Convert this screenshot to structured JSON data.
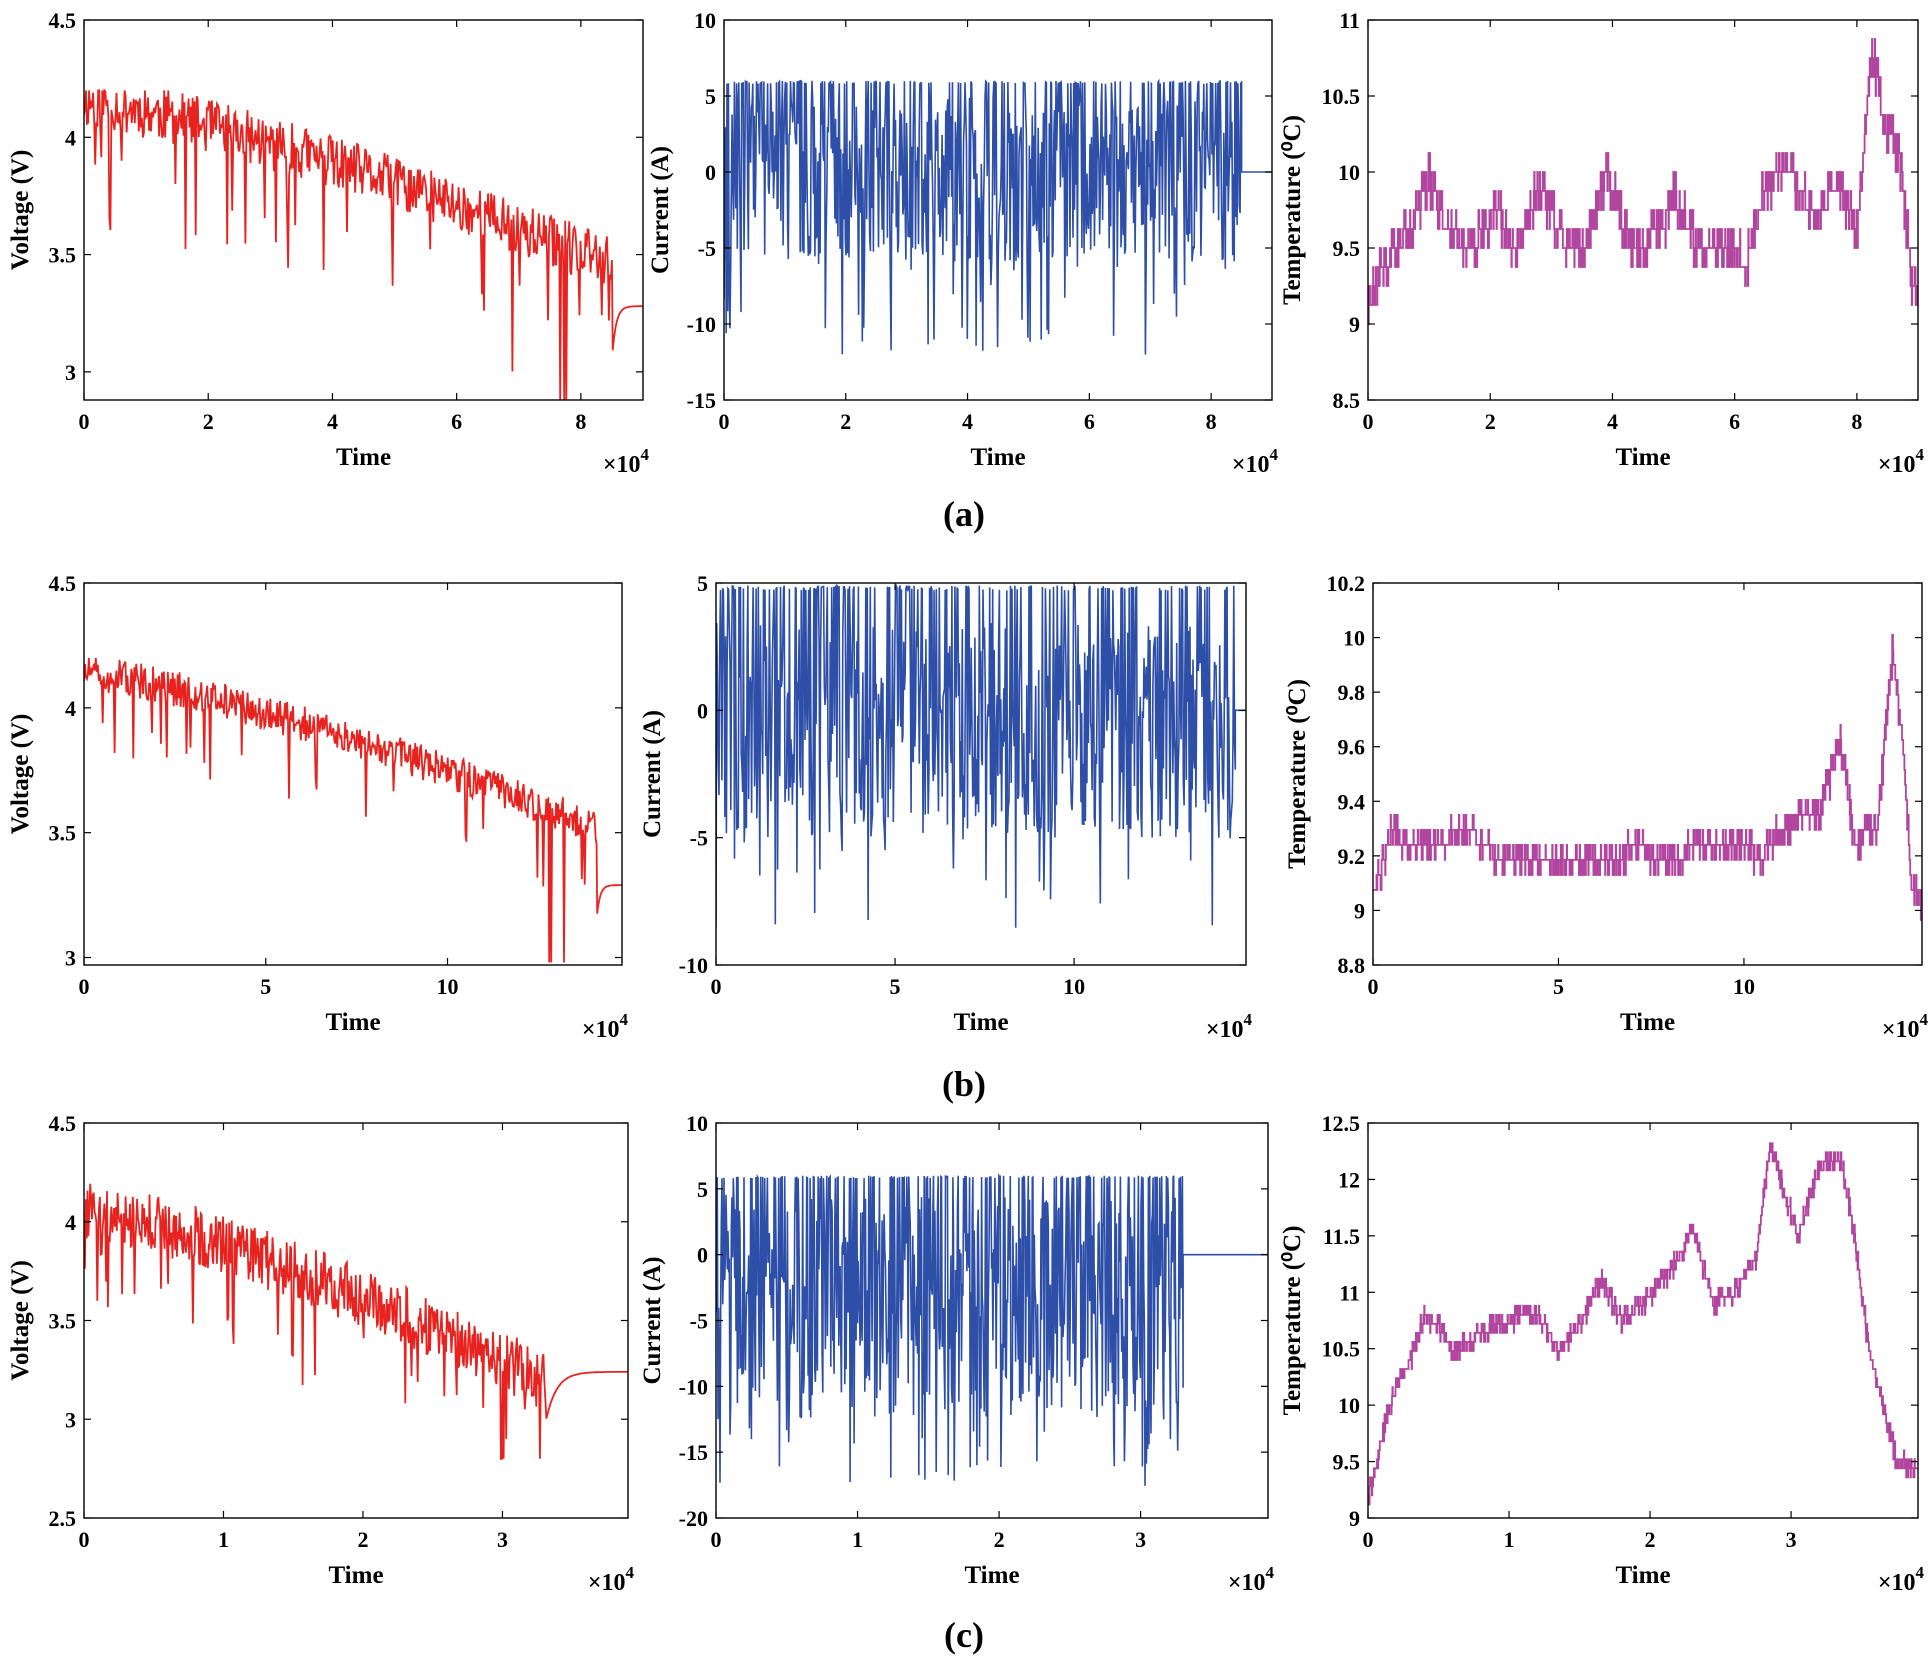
{
  "figure": {
    "captions": [
      "(a)",
      "(b)",
      "(c)"
    ],
    "multiplier_label": "×10",
    "multiplier_exponent": "4"
  },
  "colors": {
    "voltage": "#e8231f",
    "current": "#2e4fa8",
    "temperature": "#b1459f"
  },
  "chart_data": [
    {
      "id": "a-voltage",
      "row": 0,
      "col": 0,
      "type": "line",
      "title": "",
      "xlabel": "Time",
      "ylabel": "Voltage (V)",
      "xlim": [
        0,
        9
      ],
      "ylim": [
        2.88,
        4.5
      ],
      "xticks": [
        0,
        2,
        4,
        6,
        8
      ],
      "yticks": [
        3,
        3.5,
        4,
        4.5
      ],
      "x_multiplier": "×10^4",
      "series": [
        {
          "name": "Voltage",
          "kind": "voltage",
          "start": 4.12,
          "end": 3.42,
          "noise_amp": 0.42,
          "ceiling": 4.2,
          "dip_prob": 0.05,
          "dip_depth": 0.35,
          "active_end": 8.5,
          "tail_from": 3.05,
          "tail_to": 3.28,
          "seed": 11,
          "min_spike": 2.88
        }
      ]
    },
    {
      "id": "a-current",
      "row": 0,
      "col": 1,
      "type": "line",
      "title": "",
      "xlabel": "Time",
      "ylabel": "Current (A)",
      "xlim": [
        0,
        9
      ],
      "ylim": [
        -15,
        10
      ],
      "xticks": [
        0,
        2,
        4,
        6,
        8
      ],
      "yticks": [
        -15,
        -10,
        -5,
        0,
        5,
        10
      ],
      "x_multiplier": "×10^4",
      "series": [
        {
          "name": "Current",
          "kind": "current",
          "max": 6,
          "min": -13.2,
          "typical_low": -6,
          "center": -0.5,
          "active_end": 8.5,
          "tail": 0,
          "seed": 23
        }
      ]
    },
    {
      "id": "a-temperature",
      "row": 0,
      "col": 2,
      "type": "line",
      "title": "",
      "xlabel": "Time",
      "ylabel": "Temperature (⁰C)",
      "xlim": [
        0,
        9
      ],
      "ylim": [
        8.5,
        11
      ],
      "xticks": [
        0,
        2,
        4,
        6,
        8
      ],
      "yticks": [
        8.5,
        9,
        9.5,
        10,
        10.5,
        11
      ],
      "x_multiplier": "×10^4",
      "series": [
        {
          "name": "Temperature",
          "kind": "temperature",
          "step": 0.125,
          "seed": 37,
          "profile": [
            [
              0,
              9.05
            ],
            [
              0.15,
              9.3
            ],
            [
              0.4,
              9.45
            ],
            [
              0.7,
              9.65
            ],
            [
              1.0,
              9.95
            ],
            [
              1.3,
              9.6
            ],
            [
              1.7,
              9.5
            ],
            [
              2.1,
              9.75
            ],
            [
              2.4,
              9.5
            ],
            [
              2.8,
              9.9
            ],
            [
              3.2,
              9.55
            ],
            [
              3.6,
              9.55
            ],
            [
              3.9,
              10.0
            ],
            [
              4.3,
              9.5
            ],
            [
              4.8,
              9.6
            ],
            [
              5.0,
              9.85
            ],
            [
              5.4,
              9.5
            ],
            [
              5.8,
              9.55
            ],
            [
              6.2,
              9.4
            ],
            [
              6.5,
              9.9
            ],
            [
              6.9,
              10.0
            ],
            [
              7.3,
              9.7
            ],
            [
              7.7,
              9.9
            ],
            [
              8.0,
              9.6
            ],
            [
              8.25,
              10.8
            ],
            [
              8.45,
              10.3
            ],
            [
              8.7,
              10.1
            ],
            [
              8.9,
              9.3
            ],
            [
              9.0,
              9.1
            ]
          ]
        }
      ]
    },
    {
      "id": "b-voltage",
      "row": 1,
      "col": 0,
      "type": "line",
      "title": "",
      "xlabel": "Time",
      "ylabel": "Voltage (V)",
      "xlim": [
        0,
        14.8
      ],
      "ylim": [
        2.97,
        4.5
      ],
      "xticks": [
        0,
        5,
        10
      ],
      "yticks": [
        3,
        3.5,
        4,
        4.5
      ],
      "x_multiplier": "×10^4",
      "series": [
        {
          "name": "Voltage",
          "kind": "voltage",
          "start": 4.12,
          "end": 3.5,
          "noise_amp": 0.26,
          "ceiling": 4.2,
          "dip_prob": 0.04,
          "dip_depth": 0.2,
          "active_end": 14.1,
          "tail_from": 3.15,
          "tail_to": 3.29,
          "seed": 51,
          "min_spike": 2.98
        }
      ]
    },
    {
      "id": "b-current",
      "row": 1,
      "col": 1,
      "type": "line",
      "title": "",
      "xlabel": "Time",
      "ylabel": "Current (A)",
      "xlim": [
        0,
        14.8
      ],
      "ylim": [
        -10,
        5
      ],
      "xticks": [
        0,
        5,
        10
      ],
      "yticks": [
        -10,
        -5,
        0,
        5
      ],
      "x_multiplier": "×10^4",
      "series": [
        {
          "name": "Current",
          "kind": "current",
          "max": 4.9,
          "min": -9.0,
          "typical_low": -4.5,
          "center": -0.8,
          "active_end": 14.5,
          "tail": 0,
          "seed": 63
        }
      ]
    },
    {
      "id": "b-temperature",
      "row": 1,
      "col": 2,
      "type": "line",
      "title": "",
      "xlabel": "Time",
      "ylabel": "Temperature (⁰C)",
      "xlim": [
        0,
        14.8
      ],
      "ylim": [
        8.8,
        10.2
      ],
      "xticks": [
        0,
        5,
        10
      ],
      "yticks": [
        8.8,
        9,
        9.2,
        9.4,
        9.6,
        9.8,
        10,
        10.2
      ],
      "x_multiplier": "×10^4",
      "series": [
        {
          "name": "Temperature",
          "kind": "temperature",
          "step": 0.055,
          "seed": 77,
          "profile": [
            [
              0,
              9.05
            ],
            [
              0.5,
              9.28
            ],
            [
              1.5,
              9.22
            ],
            [
              2.5,
              9.3
            ],
            [
              3.5,
              9.18
            ],
            [
              5.0,
              9.2
            ],
            [
              6.0,
              9.18
            ],
            [
              7.0,
              9.22
            ],
            [
              8.0,
              9.2
            ],
            [
              9.5,
              9.25
            ],
            [
              10.5,
              9.2
            ],
            [
              11.0,
              9.3
            ],
            [
              12.0,
              9.35
            ],
            [
              12.6,
              9.6
            ],
            [
              13.0,
              9.25
            ],
            [
              13.6,
              9.3
            ],
            [
              14.0,
              9.95
            ],
            [
              14.3,
              9.6
            ],
            [
              14.5,
              9.1
            ],
            [
              14.8,
              9.0
            ]
          ]
        }
      ]
    },
    {
      "id": "c-voltage",
      "row": 2,
      "col": 0,
      "type": "line",
      "title": "",
      "xlabel": "Time",
      "ylabel": "Voltage (V)",
      "xlim": [
        0,
        3.9
      ],
      "ylim": [
        2.5,
        4.5
      ],
      "xticks": [
        0,
        1,
        2,
        3
      ],
      "yticks": [
        2.5,
        3,
        3.5,
        4,
        4.5
      ],
      "x_multiplier": "×10^4",
      "series": [
        {
          "name": "Voltage",
          "kind": "voltage",
          "start": 4.02,
          "end": 3.15,
          "noise_amp": 0.55,
          "ceiling": 4.2,
          "dip_prob": 0.06,
          "dip_depth": 0.3,
          "active_end": 3.3,
          "tail_from": 2.95,
          "tail_to": 3.24,
          "seed": 91,
          "min_spike": 2.8
        }
      ]
    },
    {
      "id": "c-current",
      "row": 2,
      "col": 1,
      "type": "line",
      "title": "",
      "xlabel": "Time",
      "ylabel": "Current (A)",
      "xlim": [
        0,
        3.9
      ],
      "ylim": [
        -20,
        10
      ],
      "xticks": [
        0,
        1,
        2,
        3
      ],
      "yticks": [
        -20,
        -15,
        -10,
        -5,
        0,
        5,
        10
      ],
      "x_multiplier": "×10^4",
      "series": [
        {
          "name": "Current",
          "kind": "current",
          "max": 6,
          "min": -18.2,
          "typical_low": -13,
          "center": -4,
          "active_end": 3.3,
          "tail": 0,
          "seed": 103
        }
      ]
    },
    {
      "id": "c-temperature",
      "row": 2,
      "col": 2,
      "type": "line",
      "title": "",
      "xlabel": "Time",
      "ylabel": "Temperature (⁰C)",
      "xlim": [
        0,
        3.9
      ],
      "ylim": [
        9,
        12.5
      ],
      "xticks": [
        0,
        1,
        2,
        3
      ],
      "yticks": [
        9,
        9.5,
        10,
        10.5,
        11,
        11.5,
        12,
        12.5
      ],
      "x_multiplier": "×10^4",
      "series": [
        {
          "name": "Temperature",
          "kind": "temperature",
          "step": 0.08,
          "seed": 117,
          "profile": [
            [
              0,
              9.2
            ],
            [
              0.05,
              9.4
            ],
            [
              0.15,
              10.0
            ],
            [
              0.3,
              10.4
            ],
            [
              0.4,
              10.8
            ],
            [
              0.5,
              10.7
            ],
            [
              0.6,
              10.45
            ],
            [
              0.8,
              10.65
            ],
            [
              1.0,
              10.75
            ],
            [
              1.2,
              10.8
            ],
            [
              1.35,
              10.5
            ],
            [
              1.5,
              10.7
            ],
            [
              1.65,
              11.1
            ],
            [
              1.8,
              10.75
            ],
            [
              2.0,
              10.95
            ],
            [
              2.2,
              11.3
            ],
            [
              2.3,
              11.55
            ],
            [
              2.45,
              10.9
            ],
            [
              2.6,
              11.0
            ],
            [
              2.75,
              11.3
            ],
            [
              2.85,
              12.3
            ],
            [
              2.95,
              11.9
            ],
            [
              3.05,
              11.5
            ],
            [
              3.2,
              12.1
            ],
            [
              3.35,
              12.2
            ],
            [
              3.45,
              11.5
            ],
            [
              3.55,
              10.5
            ],
            [
              3.65,
              10.0
            ],
            [
              3.75,
              9.5
            ],
            [
              3.9,
              9.45
            ]
          ]
        }
      ]
    }
  ]
}
